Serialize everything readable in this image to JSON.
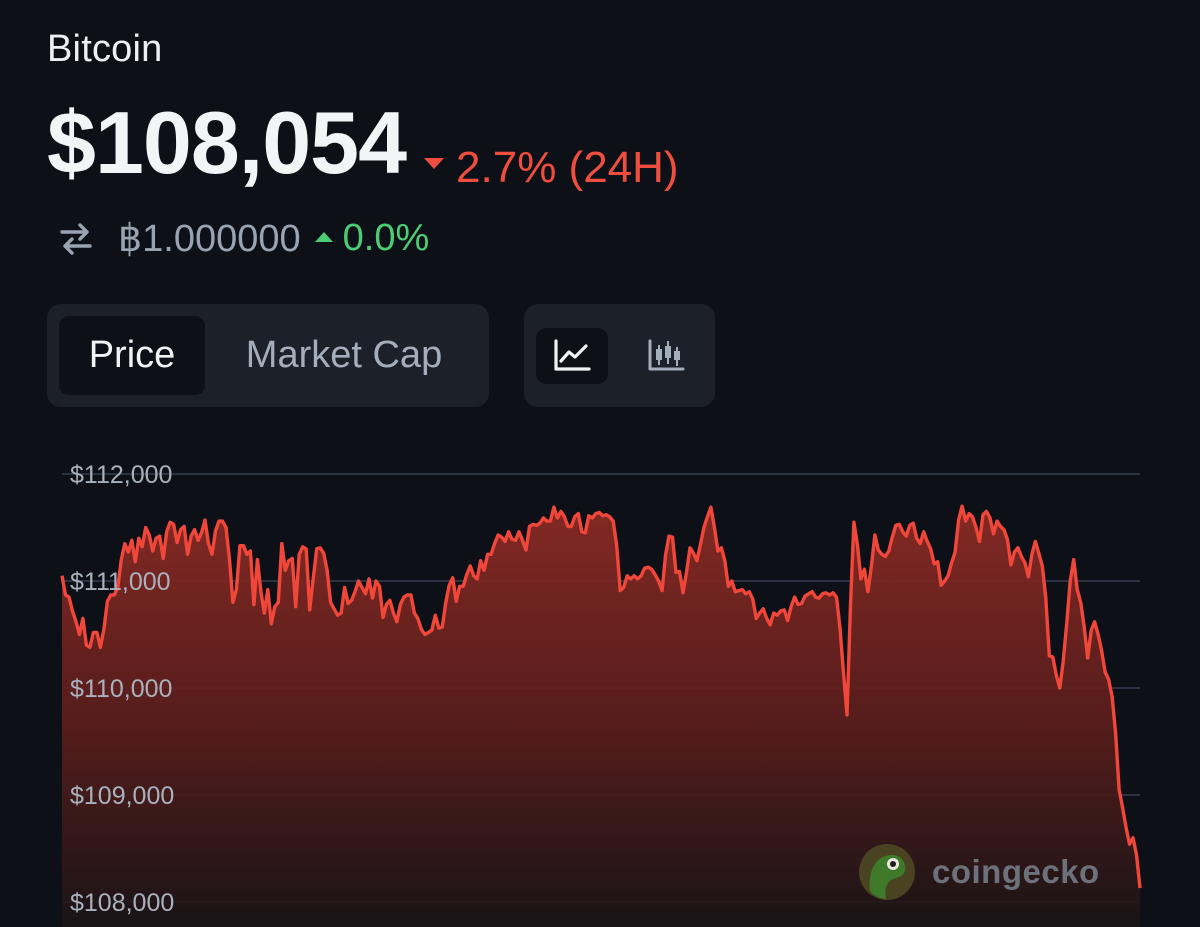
{
  "header": {
    "coin_name": "Bitcoin",
    "price": "$108,054",
    "change_24h": "2.7% (24H)",
    "btc_value": "฿1.000000",
    "btc_change": "0.0%"
  },
  "toggles": {
    "metric_tabs": [
      "Price",
      "Market Cap"
    ],
    "active_metric": "Price",
    "chart_types": [
      "line-chart-icon",
      "candlestick-chart-icon"
    ],
    "active_chart_type": "line-chart-icon"
  },
  "colors": {
    "background": "#0d1117",
    "negative": "#ef4e3e",
    "positive": "#4ccd74",
    "line": "#f0473a"
  },
  "watermark": "coingecko",
  "chart_data": {
    "type": "area",
    "title": "",
    "xlabel": "",
    "ylabel": "",
    "ylim": [
      108000,
      112000
    ],
    "y_ticks": [
      112000,
      111000,
      110000,
      109000,
      108000
    ],
    "y_tick_labels": [
      "$112,000",
      "$111,000",
      "$110,000",
      "$109,000",
      "$108,000"
    ],
    "grid": true,
    "legend": "none",
    "series": [
      {
        "values": [
          111050,
          110870,
          110850,
          110720,
          110620,
          110500,
          110650,
          110400,
          110380,
          110520,
          110520,
          110380,
          110550,
          110810,
          110870,
          110870,
          110940,
          111200,
          111350,
          111270,
          111380,
          111180,
          111400,
          111320,
          111500,
          111430,
          111280,
          111400,
          111420,
          111210,
          111460,
          111550,
          111530,
          111360,
          111480,
          111510,
          111250,
          111420,
          111480,
          111380,
          111450,
          111570,
          111350,
          111250,
          111470,
          111560,
          111560,
          111500,
          111200,
          110800,
          110920,
          111330,
          111330,
          111250,
          111280,
          110780,
          111200,
          110900,
          110700,
          110920,
          110600,
          110760,
          110800,
          111350,
          111100,
          111190,
          111210,
          110760,
          111250,
          111320,
          111300,
          110730,
          111020,
          111300,
          111310,
          111260,
          111100,
          110800,
          110740,
          110680,
          110700,
          110940,
          110790,
          110820,
          110900,
          111000,
          110940,
          110880,
          111020,
          110840,
          111000,
          110950,
          110660,
          110780,
          110820,
          110700,
          110620,
          110780,
          110850,
          110870,
          110870,
          110700,
          110650,
          110550,
          110500,
          110520,
          110540,
          110680,
          110560,
          110570,
          110800,
          110960,
          111030,
          110810,
          110950,
          110950,
          111060,
          111140,
          111050,
          111020,
          111190,
          111100,
          111250,
          111250,
          111350,
          111430,
          111410,
          111370,
          111460,
          111390,
          111380,
          111460,
          111380,
          111290,
          111510,
          111530,
          111520,
          111540,
          111590,
          111560,
          111560,
          111690,
          111590,
          111650,
          111600,
          111510,
          111510,
          111600,
          111630,
          111460,
          111450,
          111610,
          111590,
          111630,
          111640,
          111610,
          111620,
          111600,
          111560,
          111330,
          110910,
          110940,
          111050,
          111020,
          111050,
          111020,
          111050,
          111120,
          111130,
          111110,
          111060,
          111000,
          110910,
          111240,
          111420,
          111410,
          111080,
          111090,
          110890,
          111080,
          111310,
          111260,
          111190,
          111340,
          111500,
          111600,
          111690,
          111500,
          111280,
          111310,
          111190,
          110950,
          111000,
          110900,
          110910,
          110920,
          110880,
          110900,
          110830,
          110650,
          110700,
          110740,
          110650,
          110590,
          110700,
          110680,
          110720,
          110730,
          110630,
          110760,
          110850,
          110780,
          110790,
          110860,
          110880,
          110900,
          110850,
          110840,
          110880,
          110890,
          110870,
          110890,
          110850,
          110560,
          110140,
          109750,
          110750,
          111550,
          111340,
          111020,
          111110,
          110900,
          111140,
          111430,
          111290,
          111250,
          111230,
          111280,
          111410,
          111520,
          111530,
          111460,
          111420,
          111520,
          111540,
          111400,
          111350,
          111460,
          111370,
          111300,
          111160,
          111180,
          110960,
          111000,
          111050,
          111170,
          111270,
          111570,
          111700,
          111560,
          111630,
          111600,
          111500,
          111370,
          111620,
          111650,
          111590,
          111440,
          111560,
          111510,
          111480,
          111390,
          111150,
          111270,
          111310,
          111230,
          111170,
          111040,
          111250,
          111370,
          111260,
          111140,
          110840,
          110300,
          110290,
          110120,
          110000,
          110250,
          110600,
          111000,
          111200,
          110920,
          110800,
          110570,
          110280,
          110540,
          110620,
          110500,
          110350,
          110150,
          110080,
          109920,
          109580,
          109050,
          108880,
          108700,
          108540,
          108600,
          108440,
          108130
        ]
      }
    ]
  }
}
